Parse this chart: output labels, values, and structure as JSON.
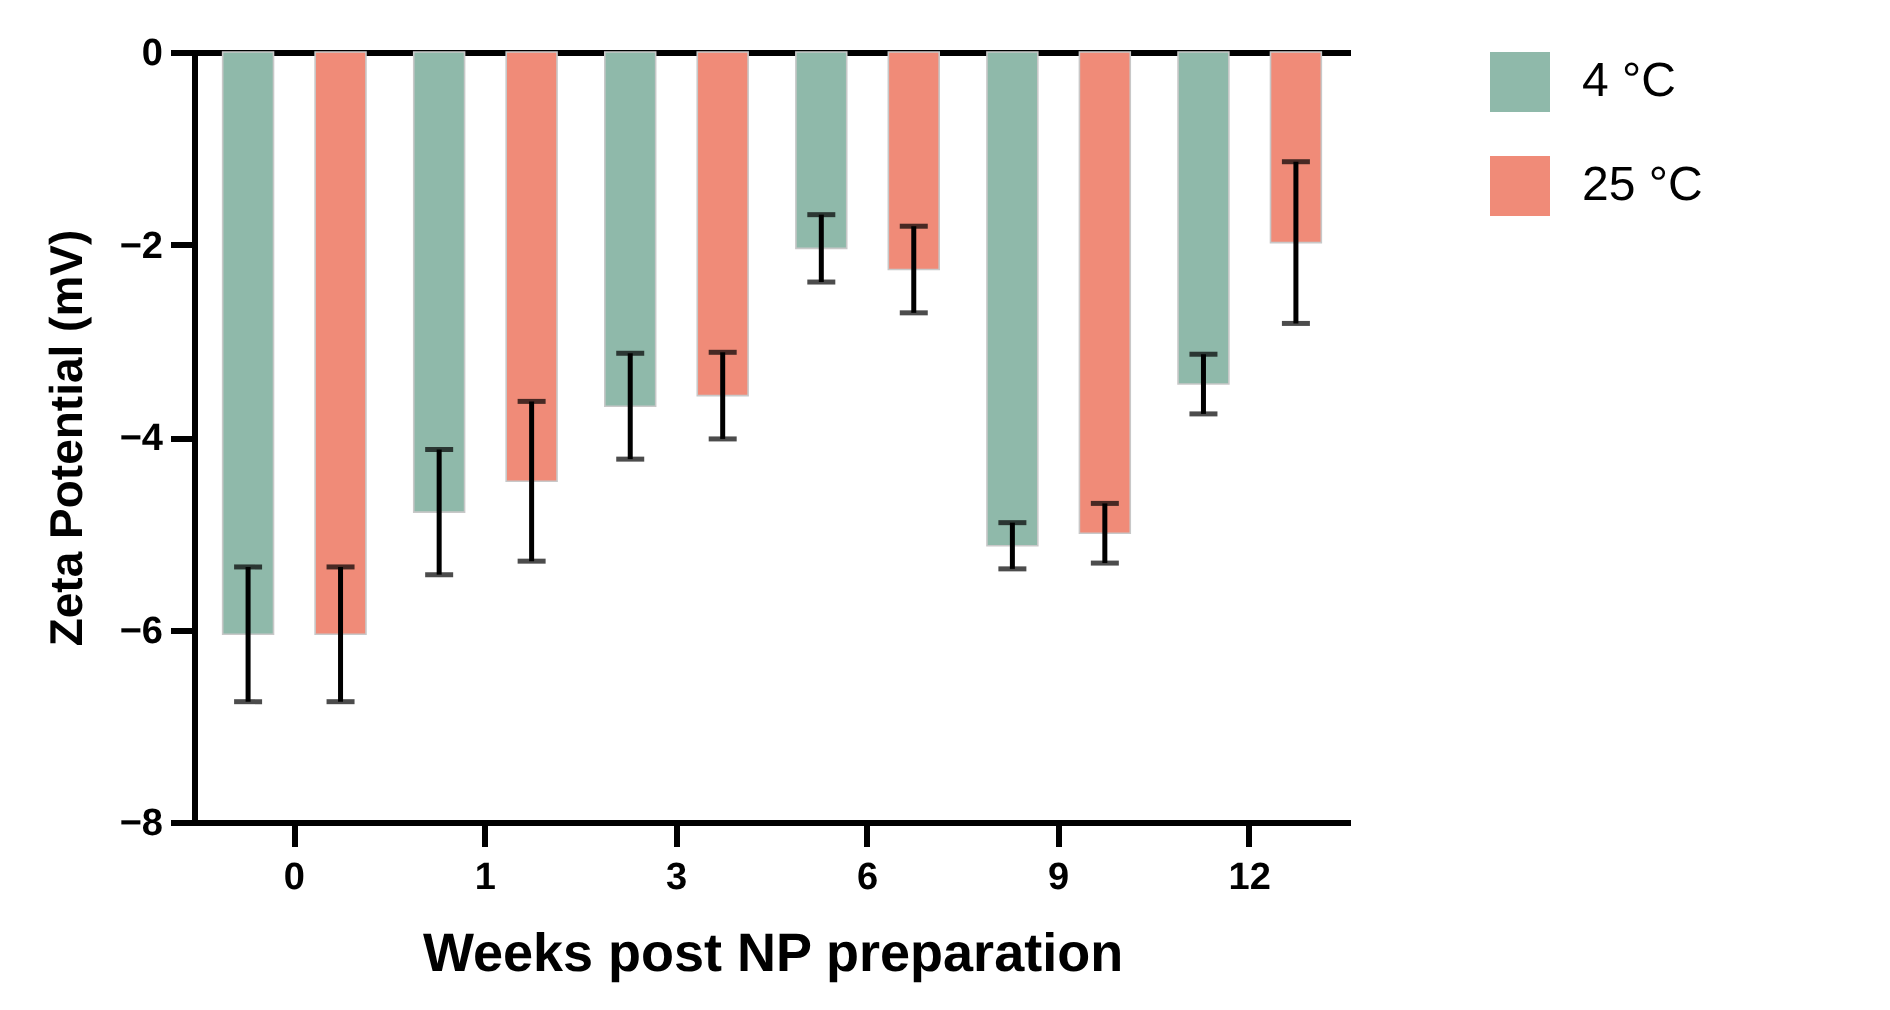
{
  "chart_data": {
    "type": "bar",
    "xlabel": "Weeks post NP preparation",
    "ylabel": "Zeta Potential (mV)",
    "categories": [
      "0",
      "1",
      "3",
      "6",
      "9",
      "12"
    ],
    "series": [
      {
        "name": "4 °C",
        "color": "#8fb9aa",
        "values": [
          -6.05,
          -4.78,
          -3.68,
          -2.04,
          -5.13,
          -3.45
        ],
        "errors": [
          0.7,
          0.65,
          0.55,
          0.35,
          0.24,
          0.31
        ]
      },
      {
        "name": "25 °C",
        "color": "#f08b78",
        "values": [
          -6.05,
          -4.46,
          -3.57,
          -2.26,
          -5.0,
          -1.98
        ],
        "errors": [
          0.7,
          0.83,
          0.45,
          0.45,
          0.31,
          0.84
        ]
      }
    ],
    "ylim": [
      -8,
      0
    ],
    "yticks": [
      -8,
      -6,
      -4,
      -2,
      0
    ],
    "grid": false,
    "legend": "top right"
  }
}
